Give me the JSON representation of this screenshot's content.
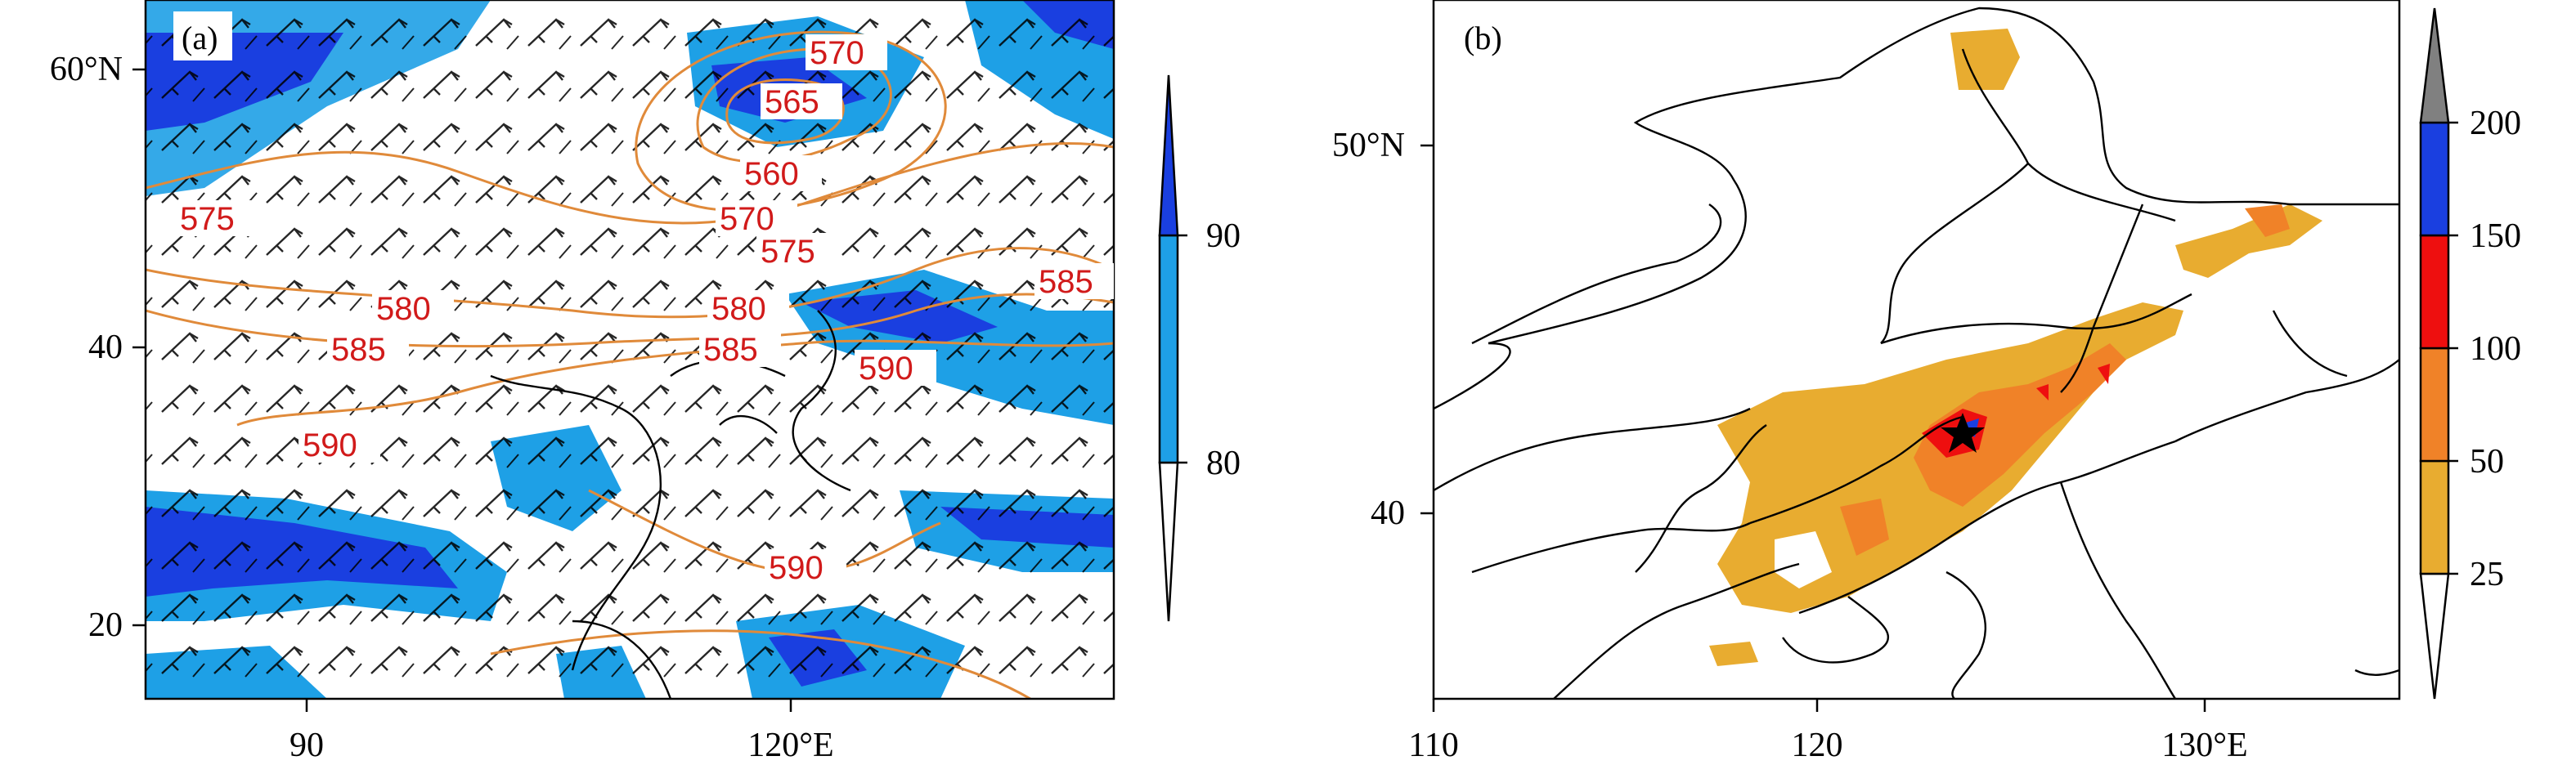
{
  "panel_a": {
    "label": "(a)",
    "y_ticks": [
      "60°N",
      "40",
      "20"
    ],
    "x_ticks": [
      "90",
      "120°E"
    ],
    "contour_labels": [
      "570",
      "565",
      "560",
      "570",
      "575",
      "575",
      "580",
      "580",
      "585",
      "585",
      "590",
      "585",
      "590",
      "590"
    ],
    "colorbar": {
      "ticks": [
        "90",
        "80"
      ],
      "colors": [
        "#ffffff",
        "#1ea0e6",
        "#1a3fe0"
      ]
    },
    "colors": {
      "contour": "#e08a3a",
      "contour_label": "#d11a1a",
      "shade_light": "#1ea0e6",
      "shade_dark": "#1a3fe0"
    }
  },
  "panel_b": {
    "label": "(b)",
    "y_ticks": [
      "50°N",
      "40"
    ],
    "x_ticks": [
      "110",
      "120",
      "130°E"
    ],
    "marker_icon": "star-icon",
    "colorbar": {
      "ticks": [
        "200",
        "150",
        "100",
        "50",
        "25"
      ],
      "colors": [
        "#ffffff",
        "#e8ac30",
        "#f08228",
        "#ee0f0f",
        "#1a3fe0",
        "#808080"
      ]
    }
  }
}
